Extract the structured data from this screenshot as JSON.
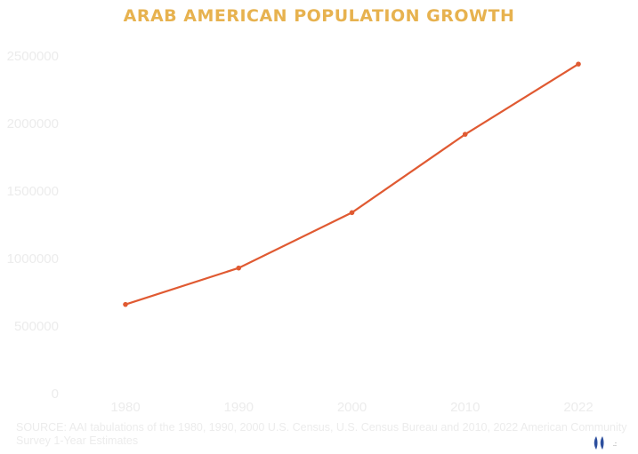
{
  "chart_data": {
    "type": "line",
    "title": "ARAB AMERICAN POPULATION GROWTH",
    "xlabel": "",
    "ylabel": "",
    "x": [
      "1980",
      "1990",
      "2000",
      "2010",
      "2022"
    ],
    "series": [
      {
        "values": [
          660000,
          930000,
          1340000,
          1920000,
          2440000
        ],
        "color": "#e05a32"
      }
    ],
    "ylim": [
      0,
      2500000
    ],
    "yticks": [
      "0",
      "500000",
      "1000000",
      "1500000",
      "2000000",
      "2500000"
    ],
    "grid": false,
    "legend": "none"
  },
  "source": "SOURCE: AAI tabulations of the 1980, 1990, 2000 U.S. Census, U.S. Census Bureau and 2010, 2022 American Community Survey 1-Year Estimates",
  "colors": {
    "title": "#e7b24f",
    "line": "#e05a32",
    "faint_text": "#ececec",
    "brand": "#2d4f9e"
  },
  "icons": {
    "brand": "brand-logo-icon"
  }
}
